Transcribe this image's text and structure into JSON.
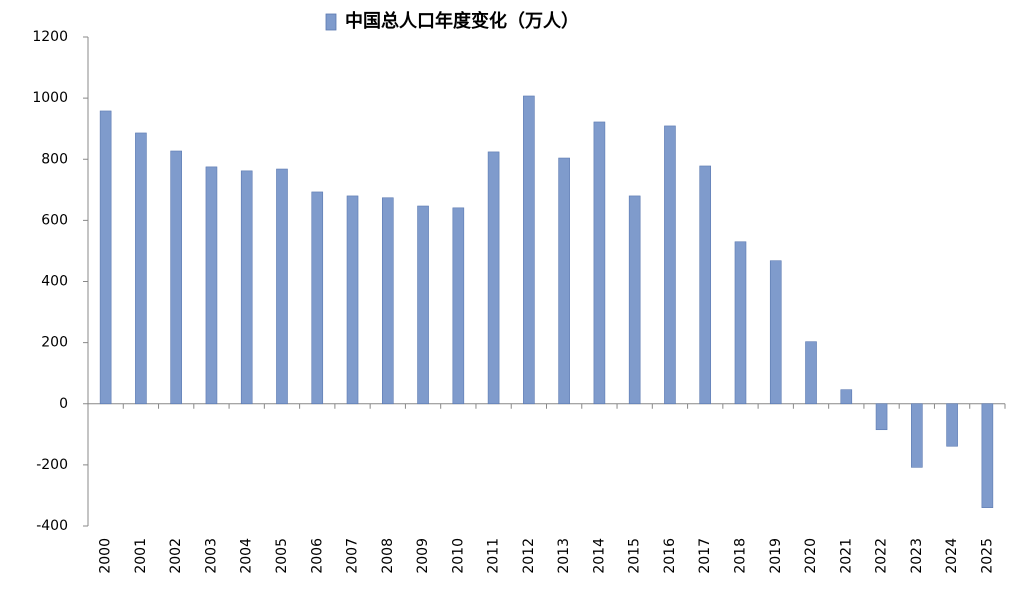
{
  "chart_data": {
    "type": "bar",
    "series": [
      {
        "name": "中国总人口年度变化（万人）",
        "color": "#7f9bcc",
        "values": [
          958,
          886,
          827,
          775,
          762,
          768,
          693,
          680,
          674,
          647,
          641,
          824,
          1007,
          804,
          922,
          680,
          909,
          778,
          530,
          468,
          203,
          46,
          -85,
          -208,
          -139,
          -340
        ]
      }
    ],
    "categories": [
      "2000",
      "2001",
      "2002",
      "2003",
      "2004",
      "2005",
      "2006",
      "2007",
      "2008",
      "2009",
      "2010",
      "2011",
      "2012",
      "2013",
      "2014",
      "2015",
      "2016",
      "2017",
      "2018",
      "2019",
      "2020",
      "2021",
      "2022",
      "2023",
      "2024",
      "2025"
    ],
    "ylim": [
      -400,
      1200
    ],
    "yticks": [
      -400,
      -200,
      0,
      200,
      400,
      600,
      800,
      1000,
      1200
    ],
    "grid": false,
    "legend": "top"
  }
}
